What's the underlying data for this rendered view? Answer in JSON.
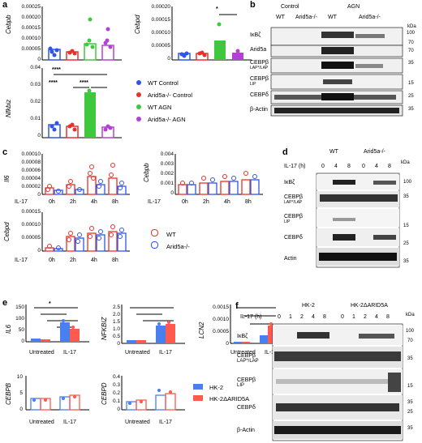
{
  "panel_letters": {
    "a": "a",
    "b": "b",
    "c": "c",
    "d": "d",
    "e": "e",
    "f": "f"
  },
  "colors": {
    "wt_control": "#2f55e8",
    "arid5a_control": "#e8312a",
    "wt_agn": "#3ec83e",
    "arid5a_agn": "#b440d8",
    "wt_open": "#e8312a",
    "arid5a_open": "#2f55e8",
    "hk2": "#4a7ff0",
    "hk2_arid": "#ff5a4d"
  },
  "panel_a": {
    "cebpb": {
      "ylabel": "Cebpb",
      "ticks": [
        "0.00025",
        "0.00020",
        "0.00015",
        "0.00010",
        "0.00005",
        "0"
      ]
    },
    "cebpd": {
      "ylabel": "Cebpd",
      "ticks": [
        "0.00020",
        "0.00015",
        "0.00010",
        "0.00005",
        "0"
      ],
      "sig": "*"
    },
    "nfkbiz": {
      "ylabel": "Nfkbiz",
      "ticks": [
        "0.04",
        "0.03",
        "0.02",
        "0.01",
        "0"
      ],
      "sig": [
        "****",
        "****",
        "****"
      ]
    },
    "legend": [
      "WT Control",
      "Arid5a-/- Control",
      "WT AGN",
      "Arid5a-/- AGN"
    ]
  },
  "panel_b": {
    "header_control": "Control",
    "header_agn": "AGN",
    "wt": "WT",
    "ko": "Arid5a-/-",
    "bands": [
      "IκBζ",
      "Arid5a",
      "CEBPβ",
      "CEBPβ",
      "CEBPδ",
      "β-Actin"
    ],
    "band_subs": [
      "",
      "",
      "LAP*/LAP",
      "LIP",
      "",
      ""
    ],
    "kda_title": "kDa",
    "kda": [
      "100",
      "70",
      "70",
      "35",
      "15",
      "25",
      "35"
    ]
  },
  "panel_c": {
    "il6": {
      "ylabel": "Il6",
      "ticks": [
        "0.00010",
        "0.00008",
        "0.00006",
        "0.00004",
        "0.00002",
        "0"
      ]
    },
    "cebpb": {
      "ylabel": "Cebpb",
      "ticks": [
        "0.004",
        "0.003",
        "0.002",
        "0.001",
        "0"
      ]
    },
    "cebpd": {
      "ylabel": "Cebpd",
      "ticks": [
        "0.00015",
        "0.00010",
        "0.00005",
        "0"
      ]
    },
    "x_label": "IL-17",
    "x_ticks": [
      "0h",
      "2h",
      "4h",
      "8h"
    ],
    "legend": [
      "WT",
      "Arid5a-/-"
    ]
  },
  "panel_d": {
    "wt": "WT",
    "ko": "Arid5a-/-",
    "il17": "IL-17 (h)",
    "lanes": [
      "0",
      "4",
      "8",
      "0",
      "4",
      "8"
    ],
    "bands": [
      "IκBζ",
      "CEBPβ",
      "CEBPβ",
      "CEBPδ",
      "Actin"
    ],
    "band_subs": [
      "",
      "LAP*/LAP",
      "LIP",
      "",
      ""
    ],
    "kda_title": "kDa",
    "kda": [
      "100",
      "35",
      "15",
      "25",
      "35"
    ]
  },
  "panel_e": {
    "il6": {
      "ylabel": "IL6",
      "ticks": [
        "150",
        "100",
        "50",
        "0"
      ]
    },
    "nfkbiz": {
      "ylabel": "NFKBIZ",
      "ticks": [
        "2.5",
        "2.0",
        "1.5",
        "1.0",
        "0.5",
        "0"
      ]
    },
    "lcn2": {
      "ylabel": "LCN2",
      "ticks": [
        "0.0015",
        "0.0010",
        "0.0005",
        "0"
      ]
    },
    "cebpb": {
      "ylabel": "CEBPB",
      "ticks": [
        "10",
        "5",
        "0"
      ]
    },
    "cebpd": {
      "ylabel": "CEBPD",
      "ticks": [
        "0.4",
        "0.3",
        "0.2",
        "0.1",
        "0"
      ]
    },
    "x_ticks": [
      "Untreated",
      "IL-17"
    ],
    "legend": [
      "HK-2",
      "HK-2ΔARID5A"
    ]
  },
  "panel_f": {
    "hk2": "HK-2",
    "hk2_arid": "HK-2ΔARID5A",
    "il17": "IL-17 (h)",
    "lanes": [
      "0",
      "1",
      "2",
      "4",
      "8",
      "0",
      "1",
      "2",
      "4",
      "8"
    ],
    "bands": [
      "IκBζ",
      "CEBPβ",
      "CEBPβ",
      "CEBPδ",
      "β-Actin"
    ],
    "band_subs": [
      "",
      "LAP*/LAP",
      "LIP",
      "",
      ""
    ],
    "kda_title": "kDa",
    "kda": [
      "100",
      "70",
      "35",
      "15",
      "35",
      "25",
      "35"
    ]
  }
}
